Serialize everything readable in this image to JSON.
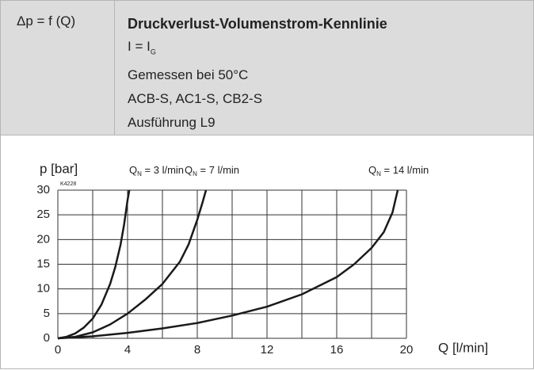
{
  "header": {
    "left": "Δp = f (Q)",
    "title": "Druckverlust-Volumenstrom-Kennlinie",
    "condition": {
      "main": "I = I",
      "sub": "G"
    },
    "lines": [
      "Gemessen bei 50°C",
      "ACB-S, AC1-S, CB2-S",
      "Ausführung L9"
    ]
  },
  "chart_data": {
    "type": "line",
    "code": "K4228",
    "ylabel": "p [bar]",
    "xlabel": "Q [l/min]",
    "xlim": [
      0,
      20
    ],
    "ylim": [
      0,
      30
    ],
    "xticks": [
      0,
      4,
      8,
      12,
      16,
      20
    ],
    "yticks": [
      0,
      5,
      10,
      15,
      20,
      25,
      30
    ],
    "xgrid": [
      0,
      2,
      4,
      6,
      8,
      10,
      12,
      14,
      16,
      18,
      20
    ],
    "grid": true,
    "color": "#1a1a1a",
    "series": [
      {
        "label": {
          "main": "Q",
          "sub": "N",
          "rest": " = 3 l/min"
        },
        "x": [
          0,
          0.5,
          1,
          1.5,
          2,
          2.5,
          3,
          3.3,
          3.6,
          3.8,
          4.0,
          4.1
        ],
        "values": [
          0,
          0.3,
          1,
          2.2,
          4,
          6.8,
          11,
          14.5,
          19,
          23,
          28,
          30
        ]
      },
      {
        "label": {
          "main": "Q",
          "sub": "N",
          "rest": " = 7 l/min"
        },
        "x": [
          0,
          1,
          2,
          3,
          4,
          5,
          6,
          7,
          7.5,
          8,
          8.3,
          8.5
        ],
        "values": [
          0,
          0.3,
          1.2,
          2.8,
          5,
          7.8,
          11,
          15.5,
          19,
          24,
          27.5,
          30
        ]
      },
      {
        "label": {
          "main": "Q",
          "sub": "N",
          "rest": " = 14 l/min"
        },
        "x": [
          0,
          2,
          4,
          6,
          8,
          10,
          12,
          14,
          16,
          17,
          18,
          18.7,
          19.2,
          19.5
        ],
        "values": [
          0,
          0.4,
          1.1,
          2,
          3.1,
          4.6,
          6.4,
          8.9,
          12.4,
          15,
          18.3,
          21.5,
          25.5,
          30
        ]
      }
    ]
  }
}
